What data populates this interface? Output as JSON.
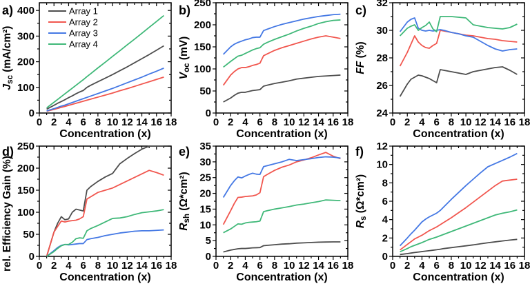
{
  "figure": {
    "background": "#ffffff",
    "arrays": [
      {
        "name": "Array 1",
        "color": "#4d4d4d"
      },
      {
        "name": "Array 2",
        "color": "#f1564e"
      },
      {
        "name": "Array 3",
        "color": "#4478e4"
      },
      {
        "name": "Array 4",
        "color": "#3fb878"
      }
    ],
    "x_axis": {
      "label": "Concentration (x)",
      "min": 0,
      "max": 18,
      "major_step": 2,
      "minor_step": 1
    },
    "x": [
      1,
      2,
      2.5,
      3,
      3.5,
      4,
      4.5,
      5,
      5.5,
      6,
      6.5,
      7,
      8,
      9,
      10,
      11,
      12,
      13,
      14,
      15,
      16,
      17
    ]
  },
  "chart_data": [
    {
      "panel_id": "a-jsc",
      "panel_label": "a)",
      "type": "line",
      "xlabel": "Concentration (x)",
      "ylabel": "Jsc (mA/cm²)",
      "ylabel_segments": [
        {
          "t": "J",
          "s": "bi"
        },
        {
          "t": "sc",
          "s": "sub"
        },
        {
          "t": " (mA/cm²)",
          "s": "b"
        }
      ],
      "ylim": [
        0,
        430
      ],
      "yticks": [
        0,
        100,
        200,
        300,
        400
      ],
      "yminor_step": 50,
      "legend": true,
      "legend_entries": [
        "Array 1",
        "Array 2",
        "Array 3",
        "Array 4"
      ],
      "series": [
        {
          "name": "Array 1",
          "values": [
            15,
            30,
            38,
            45,
            52,
            60,
            67,
            75,
            82,
            88,
            100,
            108,
            122,
            136,
            150,
            165,
            180,
            196,
            212,
            228,
            245,
            262
          ]
        },
        {
          "name": "Array 2",
          "values": [
            7,
            14,
            18,
            22,
            26,
            30,
            34,
            38,
            42,
            46,
            50,
            54,
            62,
            70,
            78,
            87,
            95,
            104,
            113,
            122,
            131,
            140
          ]
        },
        {
          "name": "Array 3",
          "values": [
            8,
            17,
            22,
            27,
            31,
            36,
            41,
            46,
            51,
            56,
            61,
            66,
            76,
            86,
            96,
            107,
            118,
            129,
            140,
            152,
            163,
            175
          ]
        },
        {
          "name": "Array 4",
          "values": [
            20,
            42,
            53,
            64,
            75,
            86,
            97,
            108,
            119,
            130,
            142,
            153,
            176,
            198,
            221,
            243,
            266,
            288,
            311,
            334,
            357,
            380
          ]
        }
      ]
    },
    {
      "panel_id": "b-voc",
      "panel_label": "b)",
      "type": "line",
      "xlabel": "Concentration (x)",
      "ylabel": "Voc (mV)",
      "ylabel_segments": [
        {
          "t": "V",
          "s": "bi"
        },
        {
          "t": "oc",
          "s": "sub"
        },
        {
          "t": " (mV)",
          "s": "b"
        }
      ],
      "ylim": [
        0,
        250
      ],
      "yticks": [
        0,
        50,
        100,
        150,
        200,
        250
      ],
      "yminor_step": 25,
      "legend": false,
      "series": [
        {
          "name": "Array 1",
          "values": [
            25,
            34,
            40,
            45,
            47,
            47,
            49,
            51,
            52,
            53,
            61,
            63,
            67,
            70,
            73,
            77,
            79,
            81,
            83,
            84,
            85,
            86
          ]
        },
        {
          "name": "Array 2",
          "values": [
            63,
            86,
            94,
            100,
            103,
            103,
            105,
            108,
            110,
            113,
            130,
            134,
            142,
            148,
            153,
            158,
            163,
            168,
            172,
            175,
            172,
            169
          ]
        },
        {
          "name": "Array 3",
          "values": [
            133,
            150,
            156,
            160,
            163,
            166,
            168,
            171,
            172,
            172,
            187,
            190,
            196,
            201,
            205,
            209,
            213,
            216,
            219,
            221,
            223,
            224
          ]
        },
        {
          "name": "Array 4",
          "values": [
            104,
            117,
            123,
            129,
            131,
            135,
            139,
            143,
            146,
            148,
            156,
            160,
            167,
            173,
            179,
            186,
            192,
            197,
            203,
            207,
            210,
            211
          ]
        }
      ]
    },
    {
      "panel_id": "c-ff",
      "panel_label": "c)",
      "type": "line",
      "xlabel": "Concentration (x)",
      "ylabel": "FF (%)",
      "ylabel_segments": [
        {
          "t": "FF",
          "s": "bi"
        },
        {
          "t": " (%)",
          "s": "b"
        }
      ],
      "ylim": [
        24,
        32
      ],
      "yticks": [
        24,
        26,
        28,
        30,
        32
      ],
      "yminor_step": 1,
      "legend": false,
      "series": [
        {
          "name": "Array 1",
          "values": [
            25.2,
            26.1,
            26.45,
            26.6,
            26.75,
            26.7,
            26.6,
            26.5,
            26.35,
            26.2,
            27.15,
            27.1,
            27.0,
            26.9,
            26.8,
            27.0,
            27.1,
            27.2,
            27.3,
            27.35,
            27.1,
            26.8
          ]
        },
        {
          "name": "Array 2",
          "values": [
            27.4,
            28.4,
            29.0,
            29.6,
            29.15,
            28.9,
            28.75,
            28.7,
            28.9,
            29.05,
            30.0,
            29.95,
            29.85,
            29.75,
            29.65,
            29.6,
            29.5,
            29.4,
            29.35,
            29.25,
            29.2,
            29.15
          ]
        },
        {
          "name": "Array 3",
          "values": [
            29.9,
            30.6,
            30.8,
            30.9,
            30.15,
            30.0,
            29.95,
            30.0,
            29.95,
            30.0,
            30.05,
            30.0,
            29.85,
            29.75,
            29.6,
            29.5,
            29.2,
            28.9,
            28.65,
            28.5,
            28.6,
            28.65
          ]
        },
        {
          "name": "Array 4",
          "values": [
            29.6,
            30.15,
            30.3,
            30.4,
            30.0,
            30.2,
            30.35,
            30.6,
            30.1,
            29.9,
            31.0,
            31.0,
            31.0,
            30.95,
            30.9,
            30.4,
            30.3,
            30.2,
            30.15,
            30.1,
            30.2,
            30.45
          ]
        }
      ]
    },
    {
      "panel_id": "d-eff-gain",
      "panel_label": "d)",
      "type": "line",
      "xlabel": "Concentration (x)",
      "ylabel": "rel. Efficiency Gain (%)",
      "ylabel_segments": [
        {
          "t": "rel. Efficiency Gain (%)",
          "s": "b"
        }
      ],
      "ylim": [
        0,
        250
      ],
      "yticks": [
        0,
        50,
        100,
        150,
        200,
        250
      ],
      "yminor_step": 25,
      "legend": false,
      "series": [
        {
          "name": "Array 1",
          "values": [
            0,
            55,
            75,
            90,
            83,
            85,
            100,
            107,
            105,
            103,
            150,
            158,
            170,
            180,
            188,
            210,
            222,
            233,
            243,
            250,
            250,
            250
          ]
        },
        {
          "name": "Array 2",
          "values": [
            0,
            55,
            68,
            80,
            78,
            80,
            81,
            82,
            85,
            90,
            130,
            135,
            145,
            150,
            155,
            163,
            171,
            179,
            187,
            195,
            190,
            184
          ]
        },
        {
          "name": "Array 3",
          "values": [
            0,
            13,
            20,
            25,
            27,
            26,
            27,
            28,
            29,
            29,
            38,
            40,
            43,
            47,
            50,
            53,
            55,
            57,
            58,
            58,
            59,
            60
          ]
        },
        {
          "name": "Array 4",
          "values": [
            0,
            11,
            18,
            24,
            27,
            27,
            32,
            40,
            42,
            41,
            58,
            63,
            70,
            78,
            86,
            87,
            90,
            95,
            99,
            101,
            103,
            106
          ]
        }
      ]
    },
    {
      "panel_id": "e-rsh",
      "panel_label": "e)",
      "type": "line",
      "xlabel": "Concentration (x)",
      "ylabel": "Rsh (Ω*cm²)",
      "ylabel_segments": [
        {
          "t": "R",
          "s": "bi"
        },
        {
          "t": "sh",
          "s": "sub"
        },
        {
          "t": " (Ω*cm²)",
          "s": "b"
        }
      ],
      "ylim": [
        0,
        35
      ],
      "yticks": [
        0,
        5,
        10,
        15,
        20,
        25,
        30,
        35
      ],
      "yminor_step": 2.5,
      "legend": false,
      "series": [
        {
          "name": "Array 1",
          "values": [
            1.4,
            2.0,
            2.2,
            2.4,
            2.5,
            2.5,
            2.6,
            2.7,
            2.75,
            2.8,
            3.4,
            3.5,
            3.7,
            3.9,
            4.0,
            4.2,
            4.3,
            4.4,
            4.5,
            4.55,
            4.6,
            4.6
          ]
        },
        {
          "name": "Array 2",
          "values": [
            10.1,
            14.5,
            16.8,
            18.7,
            18.8,
            19.0,
            19.1,
            19.2,
            19.5,
            20.2,
            25.3,
            26.0,
            27.3,
            28.3,
            29.0,
            30.0,
            30.6,
            31.3,
            32.2,
            33.0,
            31.8,
            31.0
          ]
        },
        {
          "name": "Array 3",
          "values": [
            18.7,
            22.5,
            24.0,
            25.2,
            24.9,
            25.5,
            26.0,
            26.4,
            26.1,
            26.0,
            28.5,
            28.8,
            29.4,
            30.0,
            30.8,
            30.4,
            30.7,
            31.0,
            31.4,
            31.6,
            31.5,
            31.2
          ]
        },
        {
          "name": "Array 4",
          "values": [
            7.5,
            8.7,
            9.5,
            10.3,
            10.2,
            10.6,
            10.8,
            10.9,
            11.0,
            11.2,
            14.2,
            14.5,
            15.0,
            15.4,
            15.8,
            16.3,
            16.6,
            17.0,
            17.4,
            17.9,
            17.8,
            17.7
          ]
        }
      ]
    },
    {
      "panel_id": "f-rs",
      "panel_label": "f)",
      "type": "line",
      "xlabel": "Concentration (x)",
      "ylabel": "Rs (Ω*cm²)",
      "ylabel_segments": [
        {
          "t": "R",
          "s": "bi"
        },
        {
          "t": "s",
          "s": "sub"
        },
        {
          "t": " (Ω*cm²)",
          "s": "b"
        }
      ],
      "ylim": [
        0,
        12
      ],
      "yticks": [
        0,
        2,
        4,
        6,
        8,
        10,
        12
      ],
      "yminor_step": 1,
      "legend": false,
      "series": [
        {
          "name": "Array 1",
          "values": [
            0.2,
            0.3,
            0.36,
            0.42,
            0.47,
            0.52,
            0.57,
            0.62,
            0.67,
            0.72,
            0.78,
            0.85,
            0.95,
            1.05,
            1.15,
            1.25,
            1.37,
            1.48,
            1.58,
            1.68,
            1.77,
            1.85
          ]
        },
        {
          "name": "Array 2",
          "values": [
            0.7,
            1.3,
            1.6,
            1.9,
            2.1,
            2.3,
            2.55,
            2.8,
            3.0,
            3.2,
            3.45,
            3.7,
            4.2,
            4.75,
            5.3,
            5.9,
            6.5,
            7.1,
            7.7,
            8.2,
            8.3,
            8.4
          ]
        },
        {
          "name": "Array 3",
          "values": [
            1.15,
            2.0,
            2.45,
            2.85,
            3.3,
            3.75,
            4.05,
            4.3,
            4.5,
            4.7,
            5.0,
            5.4,
            6.2,
            6.95,
            7.7,
            8.4,
            9.1,
            9.75,
            10.1,
            10.45,
            10.8,
            11.2
          ]
        },
        {
          "name": "Array 4",
          "values": [
            0.5,
            0.85,
            1.05,
            1.2,
            1.35,
            1.5,
            1.67,
            1.85,
            1.97,
            2.1,
            2.25,
            2.4,
            2.7,
            3.0,
            3.3,
            3.6,
            3.9,
            4.2,
            4.5,
            4.7,
            4.85,
            5.05
          ]
        }
      ]
    }
  ]
}
